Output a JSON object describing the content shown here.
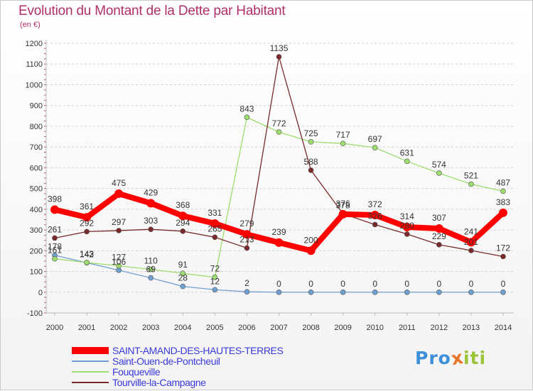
{
  "title": "Evolution du Montant de la Dette par Habitant",
  "unit": "(en €)",
  "logo": {
    "parts": [
      "Pro",
      "x",
      "iti"
    ],
    "colors": [
      "#3c8fd8",
      "#e8732a",
      "#9ac53a"
    ]
  },
  "chart_data": {
    "type": "line",
    "title": "Evolution du Montant de la Dette par Habitant",
    "ylabel": "(en €)",
    "x": [
      "2000",
      "2001",
      "2002",
      "2003",
      "2004",
      "2005",
      "2006",
      "2007",
      "2008",
      "2009",
      "2010",
      "2011",
      "2012",
      "2013",
      "2014"
    ],
    "ylim": [
      -100,
      1200
    ],
    "yticks": [
      -100,
      0,
      100,
      200,
      300,
      400,
      500,
      600,
      700,
      800,
      900,
      1000,
      1100,
      1200
    ],
    "grid": "horizontal-dashed",
    "legend_position": "bottom-left",
    "series": [
      {
        "name": "SAINT-AMAND-DES-HAUTES-TERRES",
        "color": "#ff0000",
        "values": [
          398,
          361,
          475,
          429,
          368,
          331,
          279,
          239,
          200,
          376,
          372,
          314,
          307,
          241,
          383
        ]
      },
      {
        "name": "Saint-Ouen-de-Pontcheuil",
        "color": "#6fa0d2",
        "values": [
          178,
          142,
          106,
          69,
          28,
          12,
          2,
          0,
          0,
          0,
          0,
          0,
          0,
          0,
          0
        ]
      },
      {
        "name": "Fouqueville",
        "color": "#9ddc6e",
        "values": [
          161,
          143,
          127,
          110,
          91,
          72,
          843,
          772,
          725,
          717,
          697,
          631,
          574,
          521,
          487
        ]
      },
      {
        "name": "Tourville-la-Campagne",
        "color": "#7a2a2a",
        "values": [
          261,
          292,
          297,
          303,
          294,
          265,
          213,
          1135,
          588,
          378,
          326,
          280,
          229,
          201,
          172
        ]
      }
    ]
  }
}
